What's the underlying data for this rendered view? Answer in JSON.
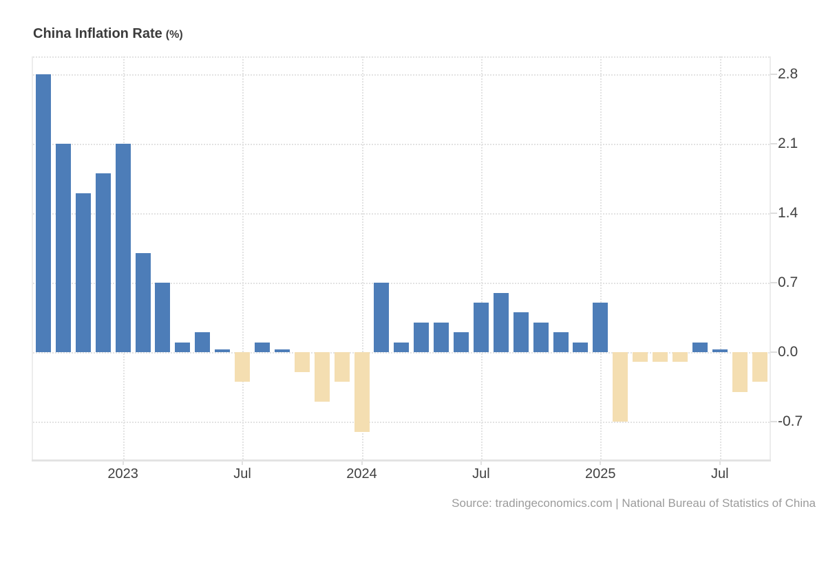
{
  "title": {
    "main": "China Inflation Rate",
    "unit": "(%)"
  },
  "source_text": "Source: tradingeconomics.com | National Bureau of Statistics of China",
  "colors": {
    "positive_bar": "#4d7db8",
    "negative_bar": "#f4deb1",
    "grid": "#e2e2e2",
    "axis_text": "#404040",
    "title_text": "#3b3b3b",
    "source_text": "#9b9b9b",
    "plot_border": "#ececec"
  },
  "chart_data": {
    "type": "bar",
    "title": "China Inflation Rate (%)",
    "xlabel": "",
    "ylabel": "",
    "x": [
      "2022-09",
      "2022-10",
      "2022-11",
      "2022-12",
      "2023-01",
      "2023-02",
      "2023-03",
      "2023-04",
      "2023-05",
      "2023-06",
      "2023-07",
      "2023-08",
      "2023-09",
      "2023-10",
      "2023-11",
      "2023-12",
      "2024-01",
      "2024-02",
      "2024-03",
      "2024-04",
      "2024-05",
      "2024-06",
      "2024-07",
      "2024-08",
      "2024-09",
      "2024-10",
      "2024-11",
      "2024-12",
      "2025-01",
      "2025-02",
      "2025-03",
      "2025-04",
      "2025-05",
      "2025-06",
      "2025-07",
      "2025-08",
      "2025-09"
    ],
    "values": [
      2.8,
      2.1,
      1.6,
      1.8,
      2.1,
      1.0,
      0.7,
      0.1,
      0.2,
      0.0,
      -0.3,
      0.1,
      0.0,
      -0.2,
      -0.5,
      -0.3,
      -0.8,
      0.7,
      0.1,
      0.3,
      0.3,
      0.2,
      0.5,
      0.6,
      0.4,
      0.3,
      0.2,
      0.1,
      0.5,
      -0.7,
      -0.1,
      -0.1,
      -0.1,
      0.1,
      0.0,
      -0.4,
      -0.3
    ],
    "y_ticks": [
      2.8,
      2.1,
      1.4,
      0.7,
      0.0,
      -0.7
    ],
    "ylim": [
      -1.08,
      2.98
    ],
    "x_tick_labels": [
      {
        "index": 4,
        "label": "2023"
      },
      {
        "index": 10,
        "label": "Jul"
      },
      {
        "index": 16,
        "label": "2024"
      },
      {
        "index": 22,
        "label": "Jul"
      },
      {
        "index": 28,
        "label": "2025"
      },
      {
        "index": 34,
        "label": "Jul"
      }
    ],
    "grid": "dotted",
    "legend": null
  }
}
